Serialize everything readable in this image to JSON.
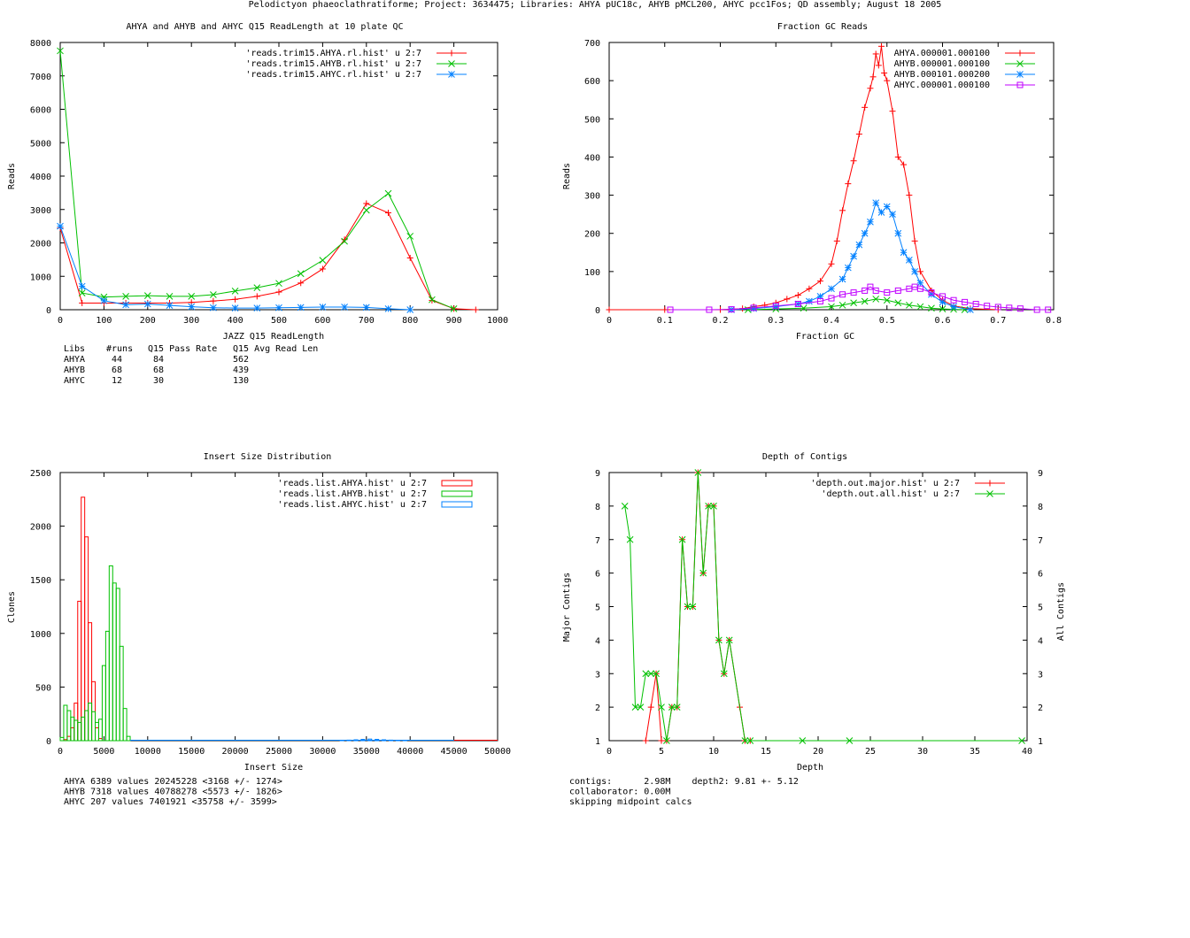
{
  "page_title": "Pelodictyon phaeoclathratiforme; Project: 3634475; Libraries: AHYA pUC18c, AHYB pMCL200, AHYC pcc1Fos; QD assembly; August 18 2005",
  "colors": {
    "red": "#ff0000",
    "green": "#00c000",
    "blue": "#0080ff",
    "magenta": "#c000ff"
  },
  "chart_data": [
    {
      "id": "readlength",
      "type": "line",
      "title": "AHYA and AHYB and AHYC Q15 ReadLength at 10 plate QC",
      "xlabel": "JAZZ Q15 ReadLength",
      "ylabel": "Reads",
      "xlim": [
        0,
        1000
      ],
      "ylim": [
        0,
        8000
      ],
      "xticks": [
        0,
        100,
        200,
        300,
        400,
        500,
        600,
        700,
        800,
        900,
        1000
      ],
      "yticks": [
        0,
        1000,
        2000,
        3000,
        4000,
        5000,
        6000,
        7000,
        8000
      ],
      "legend_position": "top-right",
      "series": [
        {
          "name": "'reads.trim15.AHYA.rl.hist' u 2:7",
          "color": "#ff0000",
          "marker": "plus",
          "x": [
            0,
            50,
            100,
            150,
            200,
            250,
            300,
            350,
            400,
            450,
            500,
            550,
            600,
            650,
            700,
            750,
            800,
            850,
            900,
            950
          ],
          "y": [
            2450,
            200,
            200,
            200,
            200,
            200,
            220,
            260,
            310,
            400,
            530,
            800,
            1220,
            2100,
            3180,
            2900,
            1550,
            280,
            30,
            0
          ]
        },
        {
          "name": "'reads.trim15.AHYB.rl.hist' u 2:7",
          "color": "#00c000",
          "marker": "cross",
          "x": [
            0,
            50,
            100,
            150,
            200,
            250,
            300,
            350,
            400,
            450,
            500,
            550,
            600,
            650,
            700,
            750,
            800,
            850,
            900
          ],
          "y": [
            7750,
            500,
            380,
            400,
            420,
            400,
            400,
            450,
            560,
            660,
            790,
            1080,
            1480,
            2050,
            2980,
            3480,
            2200,
            300,
            30
          ]
        },
        {
          "name": "'reads.trim15.AHYC.rl.hist' u 2:7",
          "color": "#0080ff",
          "marker": "star",
          "x": [
            0,
            50,
            100,
            150,
            200,
            250,
            300,
            350,
            400,
            450,
            500,
            550,
            600,
            650,
            700,
            750,
            800
          ],
          "y": [
            2500,
            700,
            270,
            150,
            170,
            130,
            90,
            60,
            50,
            50,
            60,
            70,
            80,
            80,
            70,
            30,
            0
          ]
        }
      ],
      "table": {
        "header": [
          "Libs",
          "#runs",
          "Q15 Pass Rate",
          "Q15 Avg Read Len"
        ],
        "rows": [
          [
            "AHYA",
            "44",
            "84",
            "562"
          ],
          [
            "AHYB",
            "68",
            "68",
            "439"
          ],
          [
            "AHYC",
            "12",
            "30",
            "130"
          ]
        ]
      }
    },
    {
      "id": "gc",
      "type": "line",
      "title": "Fraction GC Reads",
      "xlabel": "Fraction GC",
      "ylabel": "Reads",
      "xlim": [
        0,
        0.8
      ],
      "ylim": [
        0,
        700
      ],
      "xticks": [
        0,
        0.1,
        0.2,
        0.3,
        0.4,
        0.5,
        0.6,
        0.7,
        0.8
      ],
      "yticks": [
        0,
        100,
        200,
        300,
        400,
        500,
        600,
        700
      ],
      "legend_position": "top-right",
      "series": [
        {
          "name": "AHYA.000001.000100",
          "color": "#ff0000",
          "marker": "plus",
          "x": [
            0,
            0.1,
            0.2,
            0.24,
            0.26,
            0.28,
            0.3,
            0.32,
            0.34,
            0.36,
            0.38,
            0.4,
            0.41,
            0.42,
            0.43,
            0.44,
            0.45,
            0.46,
            0.47,
            0.475,
            0.48,
            0.485,
            0.49,
            0.495,
            0.5,
            0.51,
            0.52,
            0.53,
            0.54,
            0.55,
            0.56,
            0.58,
            0.6,
            0.62,
            0.65,
            0.7
          ],
          "y": [
            0,
            0,
            0,
            3,
            8,
            12,
            18,
            28,
            38,
            55,
            75,
            120,
            180,
            260,
            330,
            390,
            460,
            530,
            580,
            610,
            670,
            640,
            690,
            620,
            600,
            520,
            400,
            380,
            300,
            180,
            100,
            50,
            25,
            10,
            3,
            0
          ]
        },
        {
          "name": "AHYB.000001.000100",
          "color": "#00c000",
          "marker": "cross",
          "x": [
            0.25,
            0.3,
            0.35,
            0.4,
            0.42,
            0.44,
            0.46,
            0.48,
            0.5,
            0.52,
            0.54,
            0.56,
            0.58,
            0.6,
            0.62,
            0.64
          ],
          "y": [
            0,
            2,
            4,
            8,
            12,
            18,
            22,
            28,
            25,
            18,
            12,
            8,
            4,
            2,
            1,
            0
          ]
        },
        {
          "name": "AHYB.000101.000200",
          "color": "#0080ff",
          "marker": "star",
          "x": [
            0.22,
            0.26,
            0.3,
            0.34,
            0.36,
            0.38,
            0.4,
            0.42,
            0.43,
            0.44,
            0.45,
            0.46,
            0.47,
            0.48,
            0.49,
            0.5,
            0.51,
            0.52,
            0.53,
            0.54,
            0.55,
            0.56,
            0.58,
            0.6,
            0.62,
            0.65
          ],
          "y": [
            0,
            3,
            8,
            15,
            22,
            35,
            55,
            80,
            110,
            140,
            170,
            200,
            230,
            280,
            255,
            270,
            250,
            200,
            150,
            130,
            100,
            70,
            40,
            20,
            8,
            0
          ]
        },
        {
          "name": "AHYC.000001.000100",
          "color": "#c000ff",
          "marker": "square",
          "x": [
            0.11,
            0.18,
            0.22,
            0.26,
            0.3,
            0.34,
            0.38,
            0.4,
            0.42,
            0.44,
            0.46,
            0.47,
            0.48,
            0.5,
            0.52,
            0.54,
            0.55,
            0.56,
            0.58,
            0.6,
            0.62,
            0.64,
            0.66,
            0.68,
            0.7,
            0.72,
            0.74,
            0.77,
            0.79
          ],
          "y": [
            0,
            0,
            1,
            5,
            10,
            15,
            22,
            30,
            40,
            45,
            50,
            60,
            50,
            45,
            50,
            55,
            60,
            55,
            45,
            35,
            25,
            20,
            15,
            10,
            7,
            5,
            3,
            0,
            0
          ]
        }
      ]
    },
    {
      "id": "insert",
      "type": "bar",
      "title": "Insert Size Distribution",
      "xlabel": "Insert Size",
      "ylabel": "Clones",
      "xlim": [
        0,
        50000
      ],
      "ylim": [
        0,
        2500
      ],
      "xticks": [
        0,
        5000,
        10000,
        15000,
        20000,
        25000,
        30000,
        35000,
        40000,
        45000,
        50000
      ],
      "yticks": [
        0,
        500,
        1000,
        1500,
        2000,
        2500
      ],
      "legend_position": "top-right",
      "bin_width": 400,
      "series": [
        {
          "name": "'reads.list.AHYA.hist' u 2:7",
          "color": "#ff0000",
          "x": [
            400,
            800,
            1200,
            1600,
            2000,
            2400,
            2800,
            3200,
            3600,
            4000,
            4400
          ],
          "values": [
            10,
            40,
            120,
            350,
            1300,
            2270,
            1900,
            1100,
            550,
            120,
            20
          ]
        },
        {
          "name": "'reads.list.AHYB.hist' u 2:7",
          "color": "#00c000",
          "x": [
            0,
            400,
            800,
            1200,
            1600,
            2000,
            2400,
            2800,
            3200,
            3600,
            4000,
            4400,
            4800,
            5200,
            5600,
            6000,
            6400,
            6800,
            7200,
            7600
          ],
          "values": [
            30,
            330,
            280,
            220,
            190,
            170,
            220,
            280,
            350,
            270,
            170,
            200,
            700,
            1020,
            1630,
            1470,
            1420,
            880,
            300,
            40
          ]
        },
        {
          "name": "'reads.list.AHYC.hist' u 2:7",
          "color": "#0080ff",
          "x": [
            32000,
            32800,
            33600,
            34400,
            35200,
            36000,
            36800,
            37600,
            38400,
            39200
          ],
          "values": [
            2,
            5,
            8,
            12,
            15,
            12,
            8,
            5,
            3,
            1
          ]
        }
      ],
      "stats": [
        "AHYA 6389 values 20245228 <3168 +/- 1274>",
        "AHYB 7318 values 40788278 <5573 +/- 1826>",
        "AHYC 207 values 7401921 <35758 +/- 3599>"
      ]
    },
    {
      "id": "depth",
      "type": "line",
      "title": "Depth of Contigs",
      "xlabel": "Depth",
      "ylabel": "Major Contigs",
      "y2label": "All Contigs",
      "xlim": [
        0,
        40
      ],
      "ylim": [
        1,
        9
      ],
      "xticks": [
        0,
        5,
        10,
        15,
        20,
        25,
        30,
        35,
        40
      ],
      "yticks": [
        1,
        2,
        3,
        4,
        5,
        6,
        7,
        8,
        9
      ],
      "legend_position": "top-right",
      "series": [
        {
          "name": "'depth.out.major.hist' u 2:7",
          "color": "#ff0000",
          "marker": "plus",
          "x": [
            3.5,
            4,
            4.5,
            5,
            5.5,
            6,
            6.5,
            7,
            7.5,
            8,
            8.5,
            9,
            9.5,
            10,
            10.5,
            11,
            11.5,
            12.5,
            13,
            13.5
          ],
          "y": [
            1,
            2,
            3,
            1,
            1,
            2,
            2,
            7,
            5,
            5,
            9,
            6,
            8,
            8,
            4,
            3,
            4,
            2,
            1,
            1
          ]
        },
        {
          "name": "'depth.out.all.hist' u 2:7",
          "color": "#00c000",
          "marker": "cross",
          "x": [
            1.5,
            2,
            2.5,
            3,
            3.5,
            4,
            4.5,
            5,
            5.5,
            6,
            6.5,
            7,
            7.5,
            8,
            8.5,
            9,
            9.5,
            10,
            10.5,
            11,
            11.5,
            13,
            13.5,
            18.5,
            23,
            39.5
          ],
          "y": [
            8,
            7,
            2,
            2,
            3,
            3,
            3,
            2,
            1,
            2,
            2,
            7,
            5,
            5,
            9,
            6,
            8,
            8,
            4,
            3,
            4,
            1,
            1,
            1,
            1,
            1
          ]
        }
      ],
      "stats": [
        "contigs:      2.98M    depth2: 9.81 +- 5.12",
        "collaborator: 0.00M",
        "skipping midpoint calcs"
      ]
    }
  ]
}
